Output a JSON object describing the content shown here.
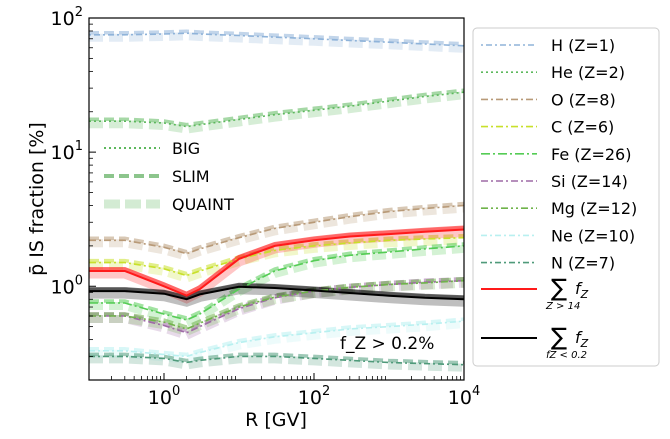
{
  "chart_data": {
    "type": "line",
    "xscale": "log",
    "yscale": "log",
    "xlim": [
      0.1,
      10000
    ],
    "ylim": [
      0.2,
      100
    ],
    "xlabel": "R [GV]",
    "ylabel": "p̄ IS fraction [%]",
    "x_ticks": [
      "10^0",
      "10^2",
      "10^4"
    ],
    "y_ticks": [
      "10^0",
      "10^1",
      "10^2"
    ],
    "annotation": "f_Z > 0.2%",
    "model_legend": [
      {
        "label": "BIG",
        "style": "dotted",
        "color": "#5cb85c"
      },
      {
        "label": "SLIM",
        "style": "dashed",
        "color": "#7fbf7f"
      },
      {
        "label": "QUAINT",
        "style": "thick-band",
        "color": "#c8e6c8"
      }
    ],
    "legend_position": "outside-right",
    "x": [
      0.1,
      0.3,
      1,
      2,
      3,
      10,
      30,
      100,
      300,
      1000,
      3000,
      10000
    ],
    "series": [
      {
        "name": "H (Z=1)",
        "color": "#8fb3d9",
        "dash": "2,3,6,3",
        "values": [
          75,
          75,
          76,
          77,
          76,
          74,
          72,
          70,
          68,
          66,
          64,
          62
        ]
      },
      {
        "name": "He (Z=2)",
        "color": "#5cb85c",
        "dash": "2,3",
        "values": [
          17,
          17,
          16.5,
          15.5,
          16,
          17.5,
          19,
          20.5,
          22,
          24,
          26,
          28
        ]
      },
      {
        "name": "O (Z=8)",
        "color": "#b89a78",
        "dash": "7,3,2,3",
        "values": [
          2.2,
          2.2,
          1.95,
          1.75,
          1.9,
          2.3,
          2.7,
          3.0,
          3.3,
          3.6,
          3.8,
          4.0
        ]
      },
      {
        "name": "C (Z=6)",
        "color": "#c8e02a",
        "dash": "7,3,2,3",
        "values": [
          1.5,
          1.5,
          1.35,
          1.2,
          1.3,
          1.6,
          1.85,
          2.0,
          2.1,
          2.2,
          2.25,
          2.3
        ]
      },
      {
        "name": "Fe (Z=26)",
        "color": "#55cc55",
        "dash": "9,3,2,3",
        "values": [
          0.75,
          0.75,
          0.62,
          0.56,
          0.62,
          0.95,
          1.3,
          1.55,
          1.7,
          1.8,
          1.9,
          2.0
        ]
      },
      {
        "name": "Si (Z=14)",
        "color": "#9e6aa6",
        "dash": "7,3,2,3",
        "values": [
          0.6,
          0.6,
          0.51,
          0.45,
          0.5,
          0.68,
          0.82,
          0.92,
          0.98,
          1.03,
          1.07,
          1.1
        ]
      },
      {
        "name": "Mg (Z=12)",
        "color": "#6fb34a",
        "dash": "7,3,2,3,2,3",
        "values": [
          0.6,
          0.6,
          0.54,
          0.48,
          0.53,
          0.7,
          0.83,
          0.92,
          0.98,
          1.03,
          1.06,
          1.1
        ]
      },
      {
        "name": "Ne (Z=10)",
        "color": "#b8f0f0",
        "dash": "6,3,2,3",
        "values": [
          0.33,
          0.33,
          0.31,
          0.3,
          0.32,
          0.38,
          0.42,
          0.45,
          0.48,
          0.5,
          0.52,
          0.55
        ]
      },
      {
        "name": "N (Z=7)",
        "color": "#4f9a7a",
        "dash": "6,3,2,3",
        "values": [
          0.3,
          0.3,
          0.29,
          0.27,
          0.28,
          0.3,
          0.3,
          0.29,
          0.28,
          0.27,
          0.265,
          0.26
        ]
      },
      {
        "name": "∑ f_Z (Z>14)",
        "color": "#ff1a1a",
        "dash": "",
        "values": [
          1.3,
          1.3,
          1.0,
          0.85,
          0.95,
          1.6,
          2.0,
          2.2,
          2.35,
          2.45,
          2.55,
          2.65
        ]
      },
      {
        "name": "∑ f_Z (f_Z<0.2)",
        "color": "#000000",
        "dash": "",
        "values": [
          0.92,
          0.92,
          0.88,
          0.8,
          0.87,
          0.99,
          0.97,
          0.93,
          0.89,
          0.85,
          0.82,
          0.8
        ]
      }
    ]
  }
}
